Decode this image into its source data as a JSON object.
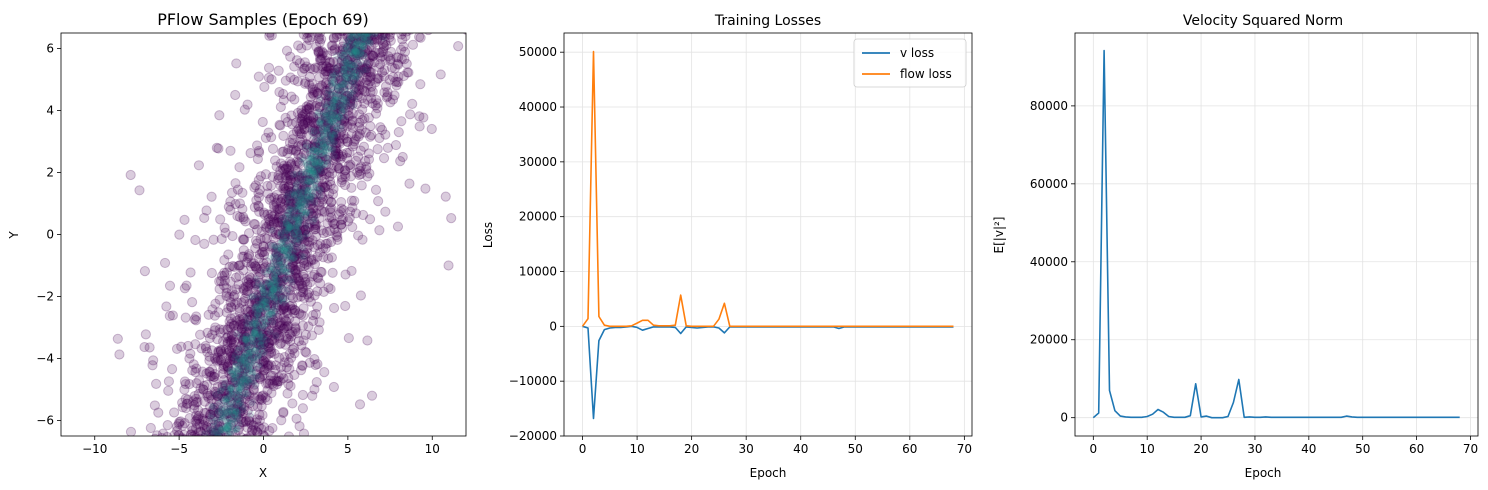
{
  "chart_data": [
    {
      "type": "scatter",
      "title": "PFlow Samples (Epoch 69)",
      "xlabel": "X",
      "ylabel": "Y",
      "xlim": [
        -12,
        12
      ],
      "ylim": [
        -6.5,
        6.5
      ],
      "xticks": [
        -10,
        -5,
        0,
        5,
        10
      ],
      "yticks": [
        -6,
        -4,
        -2,
        0,
        2,
        4,
        6
      ],
      "xtick_labels": [
        "−10",
        "−5",
        "0",
        "5",
        "10"
      ],
      "ytick_labels": [
        "−6",
        "−4",
        "−2",
        "0",
        "2",
        "4",
        "6"
      ],
      "grid": false,
      "point_color": "#440154",
      "density_color": "#21918c",
      "description_of_distribution": {
        "center_line": {
          "slope": 0.75,
          "intercept_x_at_y0": 1.6
        },
        "sample_count_estimate": 5000
      }
    },
    {
      "type": "line",
      "title": "Training Losses",
      "xlabel": "Epoch",
      "ylabel": "Loss",
      "xlim": [
        -3.4,
        71.4
      ],
      "ylim": [
        -20000,
        53500
      ],
      "xticks": [
        0,
        10,
        20,
        30,
        40,
        50,
        60,
        70
      ],
      "yticks": [
        -20000,
        -10000,
        0,
        10000,
        20000,
        30000,
        40000,
        50000
      ],
      "ytick_labels": [
        "−20000",
        "−10000",
        "0",
        "10000",
        "20000",
        "30000",
        "40000",
        "50000"
      ],
      "grid": true,
      "legend": "top-right",
      "x": [
        0,
        1,
        2,
        3,
        4,
        5,
        6,
        7,
        8,
        9,
        10,
        11,
        12,
        13,
        14,
        15,
        16,
        17,
        18,
        19,
        20,
        21,
        22,
        23,
        24,
        25,
        26,
        27,
        28,
        29,
        30,
        31,
        32,
        33,
        34,
        35,
        36,
        37,
        38,
        39,
        40,
        41,
        42,
        43,
        44,
        45,
        46,
        47,
        48,
        49,
        50,
        51,
        52,
        53,
        54,
        55,
        56,
        57,
        58,
        59,
        60,
        61,
        62,
        63,
        64,
        65,
        66,
        67,
        68
      ],
      "series": [
        {
          "name": "v loss",
          "color": "#1f77b4",
          "values": [
            0,
            -300,
            -16800,
            -2600,
            -600,
            -300,
            -200,
            -200,
            -100,
            0,
            -200,
            -700,
            -400,
            -100,
            -100,
            -100,
            -100,
            -200,
            -1300,
            -100,
            -200,
            -300,
            -200,
            -100,
            -100,
            -300,
            -1200,
            -100,
            -100,
            -100,
            -100,
            -100,
            -100,
            -100,
            -100,
            -100,
            -100,
            -100,
            -100,
            -100,
            -100,
            -100,
            -100,
            -100,
            -100,
            -100,
            -100,
            -400,
            -100,
            -100,
            -100,
            -100,
            -100,
            -100,
            -100,
            -100,
            -100,
            -100,
            -100,
            -100,
            -100,
            -100,
            -100,
            -100,
            -100,
            -100,
            -100,
            -100,
            -100
          ]
        },
        {
          "name": "flow loss",
          "color": "#ff7f0e",
          "values": [
            0,
            1400,
            50100,
            1800,
            200,
            0,
            0,
            0,
            0,
            100,
            600,
            1100,
            1100,
            200,
            100,
            100,
            100,
            200,
            5700,
            100,
            0,
            0,
            0,
            0,
            0,
            1300,
            4200,
            0,
            0,
            0,
            0,
            0,
            0,
            0,
            0,
            0,
            0,
            0,
            0,
            0,
            0,
            0,
            0,
            0,
            0,
            0,
            0,
            0,
            0,
            0,
            0,
            0,
            0,
            0,
            0,
            0,
            0,
            0,
            0,
            0,
            0,
            0,
            0,
            0,
            0,
            0,
            0,
            0,
            0
          ]
        }
      ]
    },
    {
      "type": "line",
      "title": "Velocity Squared Norm",
      "xlabel": "Epoch",
      "ylabel": "E[|v|²]",
      "xlim": [
        -3.4,
        71.4
      ],
      "ylim": [
        -4700,
        98700
      ],
      "xticks": [
        0,
        10,
        20,
        30,
        40,
        50,
        60,
        70
      ],
      "yticks": [
        0,
        20000,
        40000,
        60000,
        80000
      ],
      "grid": true,
      "x": [
        0,
        1,
        2,
        3,
        4,
        5,
        6,
        7,
        8,
        9,
        10,
        11,
        12,
        13,
        14,
        15,
        16,
        17,
        18,
        19,
        20,
        21,
        22,
        23,
        24,
        25,
        26,
        27,
        28,
        29,
        30,
        31,
        32,
        33,
        34,
        35,
        36,
        37,
        38,
        39,
        40,
        41,
        42,
        43,
        44,
        45,
        46,
        47,
        48,
        49,
        50,
        51,
        52,
        53,
        54,
        55,
        56,
        57,
        58,
        59,
        60,
        61,
        62,
        63,
        64,
        65,
        66,
        67,
        68
      ],
      "series": [
        {
          "color": "#1f77b4",
          "values": [
            0,
            1200,
            94200,
            7000,
            1800,
            400,
            200,
            100,
            100,
            100,
            300,
            900,
            2100,
            1400,
            300,
            100,
            100,
            100,
            500,
            8700,
            200,
            400,
            0,
            0,
            0,
            300,
            3900,
            9800,
            100,
            200,
            100,
            100,
            200,
            100,
            100,
            100,
            100,
            100,
            100,
            100,
            100,
            100,
            100,
            100,
            100,
            100,
            100,
            400,
            200,
            100,
            100,
            100,
            100,
            100,
            100,
            100,
            100,
            100,
            100,
            100,
            100,
            100,
            100,
            100,
            100,
            100,
            100,
            100,
            100
          ]
        }
      ]
    }
  ]
}
